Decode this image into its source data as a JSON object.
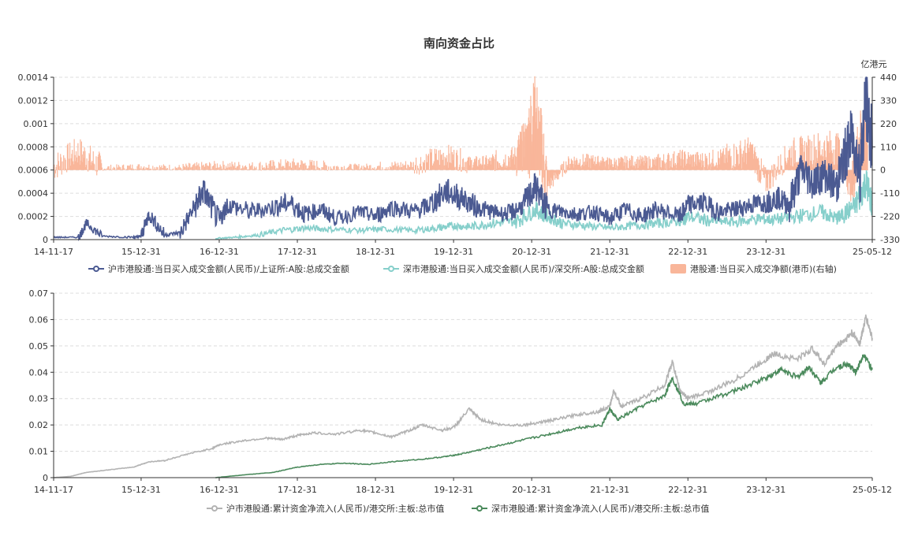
{
  "chart_data": [
    {
      "type": "line+bar",
      "title": "南向资金占比",
      "left_axis": {
        "ylim": [
          0,
          0.0014
        ],
        "ticks": [
          "0",
          "0.0002",
          "0.0004",
          "0.0006",
          "0.0008",
          "0.001",
          "0.0012",
          "0.0014"
        ],
        "tick_values": [
          0,
          0.0002,
          0.0004,
          0.0006,
          0.0008,
          0.001,
          0.0012,
          0.0014
        ]
      },
      "right_axis": {
        "unit": "亿港元",
        "ylim": [
          -330,
          440
        ],
        "ticks": [
          "-330",
          "-220",
          "-110",
          "0",
          "110",
          "220",
          "330",
          "440"
        ],
        "tick_values": [
          -330,
          -220,
          -110,
          0,
          110,
          220,
          330,
          440
        ]
      },
      "x_ticks": [
        "14-11-17",
        "15-12-31",
        "16-12-31",
        "17-12-31",
        "18-12-31",
        "19-12-31",
        "20-12-31",
        "21-12-31",
        "22-12-31",
        "23-12-31",
        "25-05-12"
      ],
      "x_tick_years": [
        2014.88,
        2016.0,
        2017.0,
        2018.0,
        2019.0,
        2020.0,
        2021.0,
        2022.0,
        2023.0,
        2024.0,
        2025.36
      ],
      "x_range_years": [
        2014.88,
        2025.36
      ],
      "series": [
        {
          "name": "沪市港股通:当日买入成交金额(人民币)/上证所:A股:总成交金额",
          "color": "#4b5a92",
          "type": "line",
          "axis": "left",
          "points": [
            [
              2014.88,
              2e-05
            ],
            [
              2015.2,
              2e-05
            ],
            [
              2015.3,
              0.00014
            ],
            [
              2015.5,
              3e-05
            ],
            [
              2015.9,
              2e-05
            ],
            [
              2016.0,
              3e-05
            ],
            [
              2016.1,
              0.00022
            ],
            [
              2016.3,
              4e-05
            ],
            [
              2016.5,
              6e-05
            ],
            [
              2016.7,
              0.0003
            ],
            [
              2016.8,
              0.00042
            ],
            [
              2017.0,
              0.00015
            ],
            [
              2017.1,
              0.0003
            ],
            [
              2017.4,
              0.00024
            ],
            [
              2017.7,
              0.00028
            ],
            [
              2017.9,
              0.00032
            ],
            [
              2018.1,
              0.00022
            ],
            [
              2018.3,
              0.00026
            ],
            [
              2018.5,
              0.00018
            ],
            [
              2018.8,
              0.00024
            ],
            [
              2019.0,
              0.0002
            ],
            [
              2019.2,
              0.00028
            ],
            [
              2019.5,
              0.00024
            ],
            [
              2019.7,
              0.0003
            ],
            [
              2019.9,
              0.00042
            ],
            [
              2020.1,
              0.00036
            ],
            [
              2020.3,
              0.00028
            ],
            [
              2020.5,
              0.00024
            ],
            [
              2020.7,
              0.00022
            ],
            [
              2020.9,
              0.0003
            ],
            [
              2021.05,
              0.00046
            ],
            [
              2021.2,
              0.00026
            ],
            [
              2021.4,
              0.00024
            ],
            [
              2021.6,
              0.00022
            ],
            [
              2021.8,
              0.00024
            ],
            [
              2022.0,
              0.00018
            ],
            [
              2022.2,
              0.00026
            ],
            [
              2022.4,
              0.0002
            ],
            [
              2022.6,
              0.00026
            ],
            [
              2022.9,
              0.0002
            ],
            [
              2023.0,
              0.0003
            ],
            [
              2023.2,
              0.00032
            ],
            [
              2023.4,
              0.00024
            ],
            [
              2023.6,
              0.00026
            ],
            [
              2023.8,
              0.0003
            ],
            [
              2024.0,
              0.00032
            ],
            [
              2024.15,
              0.00036
            ],
            [
              2024.3,
              0.0003
            ],
            [
              2024.45,
              0.0006
            ],
            [
              2024.6,
              0.0005
            ],
            [
              2024.75,
              0.00056
            ],
            [
              2024.9,
              0.00046
            ],
            [
              2025.0,
              0.0007
            ],
            [
              2025.1,
              0.0009
            ],
            [
              2025.2,
              0.0006
            ],
            [
              2025.28,
              0.0012
            ],
            [
              2025.36,
              0.00078
            ]
          ]
        },
        {
          "name": "深市港股通:当日买入成交金额(人民币)/深交所:A股:总成交金额",
          "color": "#86cfcb",
          "type": "line",
          "axis": "left",
          "points": [
            [
              2016.95,
              1e-05
            ],
            [
              2017.2,
              2e-05
            ],
            [
              2017.5,
              4e-05
            ],
            [
              2017.8,
              8e-05
            ],
            [
              2018.1,
              0.0001
            ],
            [
              2018.4,
              9e-05
            ],
            [
              2018.8,
              8e-05
            ],
            [
              2019.1,
              9e-05
            ],
            [
              2019.5,
              8e-05
            ],
            [
              2019.8,
              0.0001
            ],
            [
              2020.0,
              0.00012
            ],
            [
              2020.2,
              0.00011
            ],
            [
              2020.5,
              0.00014
            ],
            [
              2020.8,
              0.00016
            ],
            [
              2021.05,
              0.00026
            ],
            [
              2021.2,
              0.0002
            ],
            [
              2021.4,
              0.00014
            ],
            [
              2021.7,
              0.00012
            ],
            [
              2022.0,
              0.0001
            ],
            [
              2022.3,
              0.00012
            ],
            [
              2022.6,
              0.00014
            ],
            [
              2022.9,
              0.00016
            ],
            [
              2023.0,
              0.0002
            ],
            [
              2023.3,
              0.00016
            ],
            [
              2023.6,
              0.00015
            ],
            [
              2023.9,
              0.00018
            ],
            [
              2024.1,
              0.00017
            ],
            [
              2024.4,
              0.0002
            ],
            [
              2024.7,
              0.00024
            ],
            [
              2024.9,
              0.00018
            ],
            [
              2025.0,
              0.00022
            ],
            [
              2025.15,
              0.0003
            ],
            [
              2025.28,
              0.0005
            ],
            [
              2025.36,
              0.0003
            ]
          ]
        },
        {
          "name": "港股通:当日买入成交净额(港币)(右轴)",
          "color": "#f9b69a",
          "type": "bar",
          "axis": "right",
          "points": [
            [
              2014.88,
              15
            ],
            [
              2015.2,
              90
            ],
            [
              2015.5,
              10
            ],
            [
              2016.0,
              18
            ],
            [
              2016.5,
              12
            ],
            [
              2017.0,
              25
            ],
            [
              2017.5,
              20
            ],
            [
              2018.0,
              32
            ],
            [
              2018.5,
              15
            ],
            [
              2019.0,
              18
            ],
            [
              2019.5,
              28
            ],
            [
              2019.9,
              70
            ],
            [
              2020.2,
              35
            ],
            [
              2020.5,
              40
            ],
            [
              2020.8,
              65
            ],
            [
              2020.95,
              140
            ],
            [
              2021.05,
              260
            ],
            [
              2021.2,
              -80
            ],
            [
              2021.5,
              45
            ],
            [
              2021.8,
              40
            ],
            [
              2022.0,
              30
            ],
            [
              2022.3,
              40
            ],
            [
              2022.6,
              35
            ],
            [
              2022.9,
              55
            ],
            [
              2023.2,
              45
            ],
            [
              2023.5,
              60
            ],
            [
              2023.8,
              90
            ],
            [
              2024.0,
              -60
            ],
            [
              2024.3,
              80
            ],
            [
              2024.6,
              95
            ],
            [
              2024.9,
              110
            ],
            [
              2025.1,
              -100
            ],
            [
              2025.2,
              160
            ],
            [
              2025.3,
              120
            ]
          ]
        }
      ]
    },
    {
      "type": "line",
      "ylim": [
        0,
        0.07
      ],
      "ticks": [
        "0",
        "0.01",
        "0.02",
        "0.03",
        "0.04",
        "0.05",
        "0.06",
        "0.07"
      ],
      "tick_values": [
        0,
        0.01,
        0.02,
        0.03,
        0.04,
        0.05,
        0.06,
        0.07
      ],
      "x_ticks": [
        "14-11-17",
        "15-12-31",
        "16-12-31",
        "17-12-31",
        "18-12-31",
        "19-12-31",
        "20-12-31",
        "21-12-31",
        "22-12-31",
        "23-12-31",
        "25-05-12"
      ],
      "x_tick_years": [
        2014.88,
        2016.0,
        2017.0,
        2018.0,
        2019.0,
        2020.0,
        2021.0,
        2022.0,
        2023.0,
        2024.0,
        2025.36
      ],
      "x_range_years": [
        2014.88,
        2025.36
      ],
      "series": [
        {
          "name": "沪市港股通:累计资金净流入(人民币)/港交所:主板:总市值",
          "color": "#b3b3b3",
          "points": [
            [
              2014.88,
              0
            ],
            [
              2015.1,
              0.0005
            ],
            [
              2015.3,
              0.002
            ],
            [
              2015.6,
              0.003
            ],
            [
              2015.9,
              0.004
            ],
            [
              2016.1,
              0.006
            ],
            [
              2016.3,
              0.0065
            ],
            [
              2016.6,
              0.009
            ],
            [
              2016.9,
              0.011
            ],
            [
              2017.0,
              0.0125
            ],
            [
              2017.3,
              0.014
            ],
            [
              2017.6,
              0.015
            ],
            [
              2017.8,
              0.0145
            ],
            [
              2018.0,
              0.016
            ],
            [
              2018.2,
              0.017
            ],
            [
              2018.5,
              0.0165
            ],
            [
              2018.8,
              0.018
            ],
            [
              2019.0,
              0.017
            ],
            [
              2019.2,
              0.0155
            ],
            [
              2019.4,
              0.0175
            ],
            [
              2019.6,
              0.02
            ],
            [
              2019.85,
              0.018
            ],
            [
              2020.0,
              0.019
            ],
            [
              2020.2,
              0.026
            ],
            [
              2020.35,
              0.022
            ],
            [
              2020.6,
              0.02
            ],
            [
              2020.9,
              0.02
            ],
            [
              2021.1,
              0.021
            ],
            [
              2021.3,
              0.022
            ],
            [
              2021.6,
              0.024
            ],
            [
              2021.85,
              0.025
            ],
            [
              2022.0,
              0.027
            ],
            [
              2022.05,
              0.033
            ],
            [
              2022.15,
              0.027
            ],
            [
              2022.4,
              0.03
            ],
            [
              2022.7,
              0.035
            ],
            [
              2022.8,
              0.044
            ],
            [
              2022.9,
              0.033
            ],
            [
              2023.0,
              0.03
            ],
            [
              2023.3,
              0.033
            ],
            [
              2023.6,
              0.037
            ],
            [
              2023.9,
              0.043
            ],
            [
              2024.1,
              0.047
            ],
            [
              2024.4,
              0.045
            ],
            [
              2024.6,
              0.049
            ],
            [
              2024.75,
              0.043
            ],
            [
              2024.9,
              0.05
            ],
            [
              2025.0,
              0.052
            ],
            [
              2025.1,
              0.055
            ],
            [
              2025.2,
              0.051
            ],
            [
              2025.28,
              0.061
            ],
            [
              2025.36,
              0.053
            ]
          ]
        },
        {
          "name": "深市港股通:累计资金净流入(人民币)/港交所:主板:总市值",
          "color": "#4b8a5c",
          "points": [
            [
              2016.95,
              0
            ],
            [
              2017.3,
              0.001
            ],
            [
              2017.7,
              0.002
            ],
            [
              2018.0,
              0.004
            ],
            [
              2018.3,
              0.005
            ],
            [
              2018.6,
              0.0055
            ],
            [
              2018.9,
              0.005
            ],
            [
              2019.2,
              0.006
            ],
            [
              2019.6,
              0.007
            ],
            [
              2019.9,
              0.008
            ],
            [
              2020.1,
              0.009
            ],
            [
              2020.4,
              0.011
            ],
            [
              2020.7,
              0.013
            ],
            [
              2021.0,
              0.015
            ],
            [
              2021.3,
              0.017
            ],
            [
              2021.6,
              0.019
            ],
            [
              2021.9,
              0.02
            ],
            [
              2022.0,
              0.026
            ],
            [
              2022.1,
              0.022
            ],
            [
              2022.4,
              0.027
            ],
            [
              2022.7,
              0.031
            ],
            [
              2022.8,
              0.038
            ],
            [
              2022.95,
              0.028
            ],
            [
              2023.1,
              0.028
            ],
            [
              2023.4,
              0.031
            ],
            [
              2023.7,
              0.034
            ],
            [
              2024.0,
              0.038
            ],
            [
              2024.2,
              0.041
            ],
            [
              2024.4,
              0.038
            ],
            [
              2024.55,
              0.042
            ],
            [
              2024.7,
              0.036
            ],
            [
              2024.9,
              0.042
            ],
            [
              2025.05,
              0.043
            ],
            [
              2025.15,
              0.04
            ],
            [
              2025.25,
              0.047
            ],
            [
              2025.36,
              0.041
            ]
          ]
        }
      ]
    }
  ]
}
